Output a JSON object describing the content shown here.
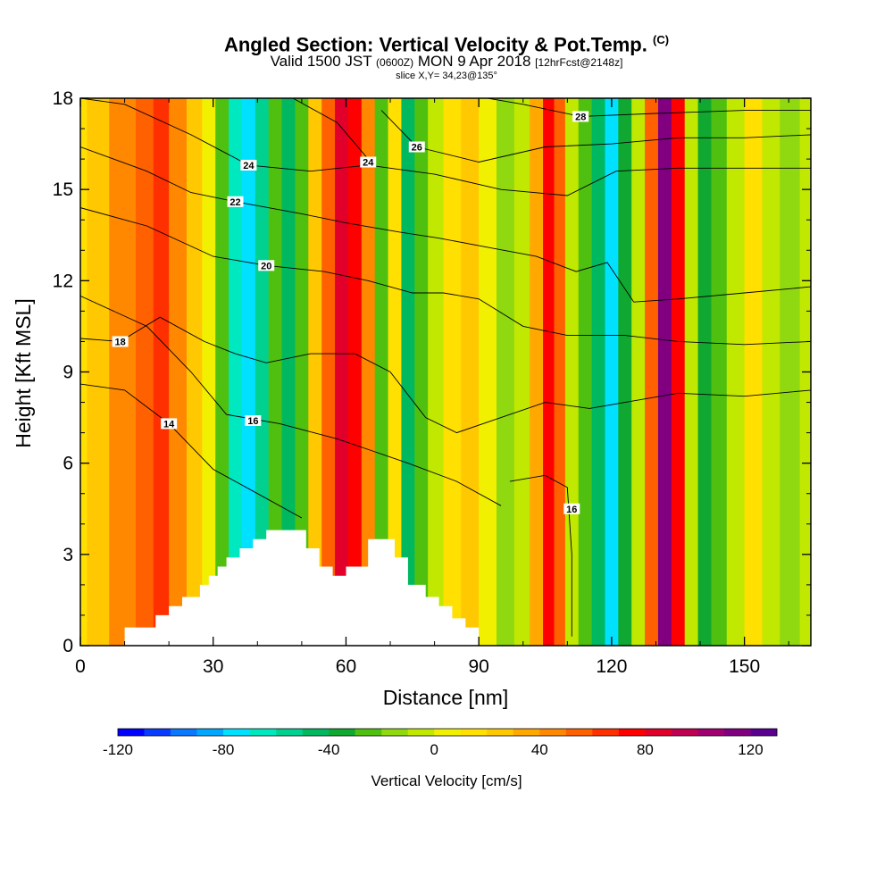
{
  "header": {
    "title": "Angled Section: Vertical Velocity & Pot.Temp.",
    "title_units": "(C)",
    "valid_prefix": "Valid 1500 JST",
    "valid_utc": "(0600Z)",
    "valid_date": "MON 9 Apr 2018",
    "forecast": "[12hrFcst@2148z]",
    "slice": "slice X,Y= 34,23@135°"
  },
  "chart_data": {
    "type": "heatmap",
    "xlabel": "Distance [nm]",
    "ylabel": "Height [Kft MSL]",
    "xlim": [
      0,
      165
    ],
    "ylim": [
      0,
      18
    ],
    "x_ticks": [
      "0",
      "30",
      "60",
      "90",
      "120",
      "150"
    ],
    "y_ticks": [
      "0",
      "3",
      "6",
      "9",
      "12",
      "15",
      "18"
    ],
    "colorbar": {
      "label": "Vertical Velocity [cm/s]",
      "range": [
        -120,
        130
      ],
      "step": 10,
      "tick_labels": [
        "-120",
        "-80",
        "-40",
        "0",
        "40",
        "80",
        "120"
      ],
      "colors": [
        "#0000ff",
        "#0a3cff",
        "#0a78ff",
        "#00a8ff",
        "#00e0ff",
        "#00e8c0",
        "#00d090",
        "#00b860",
        "#10a830",
        "#50c010",
        "#90d810",
        "#c0e800",
        "#f0f000",
        "#ffe000",
        "#ffc800",
        "#ffa800",
        "#ff8800",
        "#ff6000",
        "#ff3000",
        "#ff0000",
        "#e0002a",
        "#c00050",
        "#a00070",
        "#800080",
        "#5a0090"
      ]
    },
    "velocity_columns": [
      {
        "x": 3,
        "v": 25
      },
      {
        "x": 10,
        "v": 40
      },
      {
        "x": 15,
        "v": 55
      },
      {
        "x": 18,
        "v": 60
      },
      {
        "x": 22,
        "v": 45
      },
      {
        "x": 26,
        "v": 25
      },
      {
        "x": 29,
        "v": 5
      },
      {
        "x": 32,
        "v": -25
      },
      {
        "x": 35,
        "v": -65
      },
      {
        "x": 38,
        "v": -80
      },
      {
        "x": 41,
        "v": -55
      },
      {
        "x": 44,
        "v": -30
      },
      {
        "x": 47,
        "v": -50
      },
      {
        "x": 50,
        "v": -30
      },
      {
        "x": 53,
        "v": 20
      },
      {
        "x": 56,
        "v": 55
      },
      {
        "x": 59,
        "v": 80
      },
      {
        "x": 62,
        "v": 75
      },
      {
        "x": 65,
        "v": 45
      },
      {
        "x": 68,
        "v": -25
      },
      {
        "x": 71,
        "v": 15
      },
      {
        "x": 74,
        "v": -45
      },
      {
        "x": 77,
        "v": -25
      },
      {
        "x": 80,
        "v": -5
      },
      {
        "x": 84,
        "v": 10
      },
      {
        "x": 88,
        "v": 25
      },
      {
        "x": 92,
        "v": 5
      },
      {
        "x": 96,
        "v": -15
      },
      {
        "x": 100,
        "v": -5
      },
      {
        "x": 103,
        "v": 30
      },
      {
        "x": 106,
        "v": 75
      },
      {
        "x": 108,
        "v": 50
      },
      {
        "x": 111,
        "v": -10
      },
      {
        "x": 114,
        "v": -30
      },
      {
        "x": 117,
        "v": -45
      },
      {
        "x": 120,
        "v": -80
      },
      {
        "x": 123,
        "v": -40
      },
      {
        "x": 126,
        "v": -10
      },
      {
        "x": 129,
        "v": 55
      },
      {
        "x": 132,
        "v": 110
      },
      {
        "x": 135,
        "v": 70
      },
      {
        "x": 138,
        "v": -5
      },
      {
        "x": 141,
        "v": -35
      },
      {
        "x": 144,
        "v": -25
      },
      {
        "x": 148,
        "v": -5
      },
      {
        "x": 152,
        "v": 10
      },
      {
        "x": 156,
        "v": -10
      },
      {
        "x": 160,
        "v": -20
      },
      {
        "x": 165,
        "v": -10
      }
    ],
    "terrain": [
      [
        0,
        0
      ],
      [
        10,
        0
      ],
      [
        10,
        0.6
      ],
      [
        17,
        0.6
      ],
      [
        17,
        1.0
      ],
      [
        20,
        1.0
      ],
      [
        20,
        1.3
      ],
      [
        23,
        1.3
      ],
      [
        23,
        1.6
      ],
      [
        27,
        1.6
      ],
      [
        27,
        2.0
      ],
      [
        29,
        2.0
      ],
      [
        29,
        2.3
      ],
      [
        31,
        2.3
      ],
      [
        31,
        2.6
      ],
      [
        33,
        2.6
      ],
      [
        33,
        2.9
      ],
      [
        36,
        2.9
      ],
      [
        36,
        3.2
      ],
      [
        39,
        3.2
      ],
      [
        39,
        3.5
      ],
      [
        42,
        3.5
      ],
      [
        42,
        3.8
      ],
      [
        51,
        3.8
      ],
      [
        51,
        3.2
      ],
      [
        54,
        3.2
      ],
      [
        54,
        2.6
      ],
      [
        57,
        2.6
      ],
      [
        57,
        2.3
      ],
      [
        60,
        2.3
      ],
      [
        60,
        2.6
      ],
      [
        65,
        2.6
      ],
      [
        65,
        3.5
      ],
      [
        71,
        3.5
      ],
      [
        71,
        2.9
      ],
      [
        74,
        2.9
      ],
      [
        74,
        2.0
      ],
      [
        78,
        2.0
      ],
      [
        78,
        1.6
      ],
      [
        81,
        1.6
      ],
      [
        81,
        1.3
      ],
      [
        84,
        1.3
      ],
      [
        84,
        0.9
      ],
      [
        87,
        0.9
      ],
      [
        87,
        0.6
      ],
      [
        90,
        0.6
      ],
      [
        90,
        0
      ]
    ],
    "theta_contours": [
      {
        "label": "14",
        "lx": 20,
        "ly": 7.3,
        "pts": [
          [
            0,
            8.6
          ],
          [
            10,
            8.4
          ],
          [
            20,
            7.3
          ],
          [
            30,
            5.8
          ],
          [
            40,
            5.0
          ],
          [
            50,
            4.2
          ]
        ]
      },
      {
        "label": "16",
        "lx": 39,
        "ly": 7.4,
        "pts": [
          [
            0,
            11.5
          ],
          [
            15,
            10.5
          ],
          [
            25,
            9.0
          ],
          [
            33,
            7.6
          ],
          [
            45,
            7.3
          ],
          [
            58,
            6.8
          ],
          [
            66,
            6.4
          ],
          [
            74,
            6.0
          ],
          [
            85,
            5.4
          ],
          [
            95,
            4.6
          ]
        ]
      },
      {
        "label": "16",
        "lx": 111,
        "ly": 4.5,
        "pts": [
          [
            97,
            5.4
          ],
          [
            105,
            5.6
          ],
          [
            110,
            5.2
          ],
          [
            111,
            3.0
          ],
          [
            111,
            0.3
          ]
        ]
      },
      {
        "label": "18",
        "lx": 9,
        "ly": 10.0,
        "pts": [
          [
            0,
            10.1
          ],
          [
            9,
            10.0
          ],
          [
            18,
            10.8
          ],
          [
            28,
            10.0
          ],
          [
            35,
            9.6
          ],
          [
            42,
            9.3
          ],
          [
            52,
            9.6
          ],
          [
            62,
            9.6
          ],
          [
            70,
            9.0
          ],
          [
            78,
            7.5
          ],
          [
            85,
            7.0
          ],
          [
            95,
            7.5
          ],
          [
            105,
            8.0
          ],
          [
            115,
            7.8
          ],
          [
            123,
            8.0
          ],
          [
            135,
            8.3
          ],
          [
            150,
            8.2
          ],
          [
            165,
            8.4
          ]
        ]
      },
      {
        "label": "20",
        "lx": 42,
        "ly": 12.5,
        "pts": [
          [
            0,
            14.4
          ],
          [
            15,
            13.8
          ],
          [
            30,
            12.8
          ],
          [
            42,
            12.5
          ],
          [
            55,
            12.3
          ],
          [
            65,
            12.0
          ],
          [
            75,
            11.6
          ],
          [
            82,
            11.6
          ],
          [
            90,
            11.4
          ],
          [
            100,
            10.5
          ],
          [
            110,
            10.2
          ],
          [
            123,
            10.2
          ],
          [
            135,
            10.0
          ],
          [
            150,
            9.9
          ],
          [
            165,
            10.0
          ]
        ]
      },
      {
        "label": "22",
        "lx": 35,
        "ly": 14.6,
        "pts": [
          [
            0,
            16.4
          ],
          [
            15,
            15.6
          ],
          [
            25,
            14.9
          ],
          [
            35,
            14.6
          ],
          [
            50,
            14.2
          ],
          [
            60,
            13.9
          ],
          [
            72,
            13.6
          ],
          [
            81,
            13.4
          ],
          [
            92,
            13.1
          ],
          [
            103,
            12.8
          ],
          [
            112,
            12.3
          ],
          [
            119,
            12.6
          ],
          [
            125,
            11.3
          ],
          [
            135,
            11.4
          ],
          [
            150,
            11.6
          ],
          [
            165,
            11.8
          ]
        ]
      },
      {
        "label": "24",
        "lx": 38,
        "ly": 15.8,
        "pts": [
          [
            0,
            18
          ],
          [
            10,
            17.8
          ],
          [
            25,
            16.8
          ],
          [
            38,
            15.8
          ],
          [
            52,
            15.6
          ],
          [
            65,
            15.8
          ],
          [
            80,
            15.5
          ],
          [
            95,
            15.0
          ],
          [
            110,
            14.8
          ],
          [
            121,
            15.6
          ],
          [
            135,
            15.7
          ],
          [
            150,
            15.7
          ],
          [
            165,
            15.7
          ]
        ]
      },
      {
        "label": "24",
        "lx": 65,
        "ly": 15.9,
        "pts": [
          [
            48,
            18
          ],
          [
            58,
            17.2
          ],
          [
            65,
            16.0
          ]
        ]
      },
      {
        "label": "26",
        "lx": 76,
        "ly": 16.4,
        "pts": [
          [
            68,
            17.6
          ],
          [
            76,
            16.4
          ],
          [
            90,
            15.9
          ],
          [
            105,
            16.4
          ],
          [
            120,
            16.5
          ],
          [
            135,
            16.7
          ],
          [
            150,
            16.7
          ],
          [
            165,
            16.8
          ]
        ]
      },
      {
        "label": "28",
        "lx": 113,
        "ly": 17.4,
        "pts": [
          [
            92,
            18
          ],
          [
            100,
            17.8
          ],
          [
            113,
            17.4
          ],
          [
            130,
            17.5
          ],
          [
            150,
            17.6
          ],
          [
            165,
            17.6
          ]
        ]
      }
    ]
  }
}
